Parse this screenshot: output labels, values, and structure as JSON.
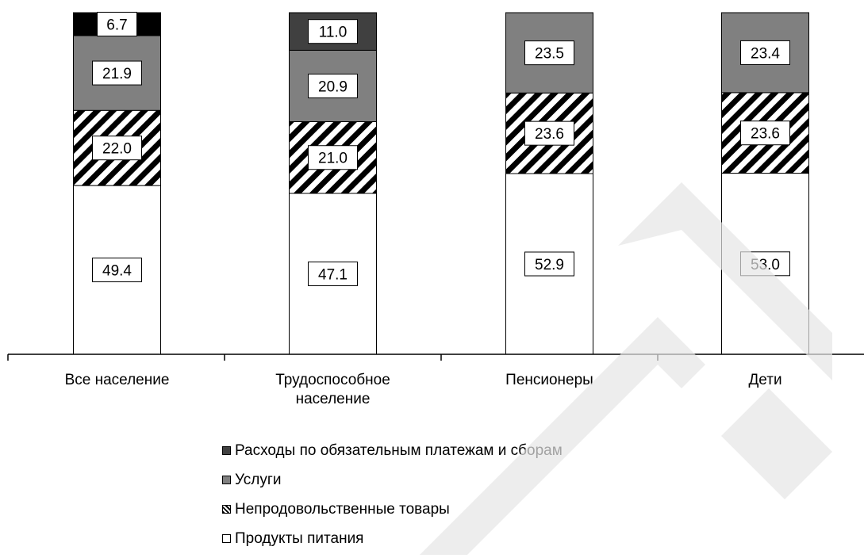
{
  "chart_data": {
    "type": "bar",
    "stacked": true,
    "percent_stacked": true,
    "categories": [
      "Все население",
      "Трудоспособное население",
      "Пенсионеры",
      "Дети"
    ],
    "category_label_lines": [
      [
        "Все население"
      ],
      [
        "Трудоспособное",
        "население"
      ],
      [
        "Пенсионеры"
      ],
      [
        "Дети"
      ]
    ],
    "series": [
      {
        "name": "Продукты питания",
        "values": [
          49.4,
          47.1,
          52.9,
          53.0
        ],
        "fill": "#ffffff",
        "pattern": "none"
      },
      {
        "name": "Непродовольственные товары",
        "values": [
          22.0,
          21.0,
          23.6,
          23.6
        ],
        "fill": "#ffffff",
        "pattern": "diagonal-hatch"
      },
      {
        "name": "Услуги",
        "values": [
          21.9,
          20.9,
          23.5,
          23.4
        ],
        "fill": "#808080",
        "pattern": "none"
      },
      {
        "name": "Расходы по обязательным платежам и сборам",
        "values": [
          6.7,
          11.0,
          0,
          0
        ],
        "fill_by_category": [
          "#000000",
          "#404040",
          "#000000",
          "#000000"
        ],
        "pattern": "none"
      }
    ],
    "value_labels": [
      [
        "49.4",
        "47.1",
        "52.9",
        "53.0"
      ],
      [
        "22.0",
        "21.0",
        "23.6",
        "23.6"
      ],
      [
        "21.9",
        "20.9",
        "23.5",
        "23.4"
      ],
      [
        "6.7",
        "11.0",
        "",
        ""
      ]
    ],
    "legend": {
      "position": "bottom",
      "order": [
        "Расходы по обязательным платежам и сборам",
        "Услуги",
        "Непродовольственные товары",
        "Продукты питания"
      ]
    },
    "ylim": [
      0,
      100
    ],
    "y_axis_visible": false,
    "grid": false
  },
  "legend_items": [
    {
      "label": "Расходы по обязательным платежам и сборам",
      "swatch": "dark"
    },
    {
      "label": "Услуги",
      "swatch": "grey"
    },
    {
      "label": "Непродовольственные товары",
      "swatch": "hatch"
    },
    {
      "label": "Продукты питания",
      "swatch": "white"
    }
  ]
}
